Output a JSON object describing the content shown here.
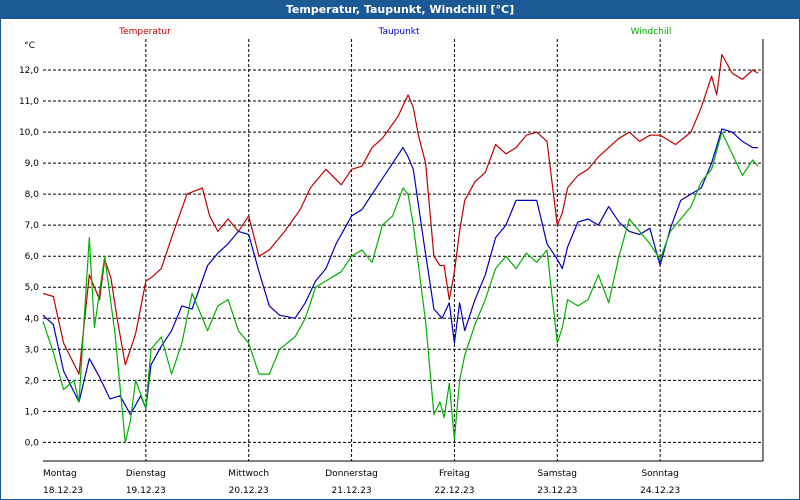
{
  "window": {
    "title": "Temperatur, Taupunkt, Windchill [°C]"
  },
  "colors": {
    "temperature": "#c00000",
    "dewpoint": "#0000c0",
    "windchill": "#00b000",
    "titlebar": "#1c5a96"
  },
  "chart_data": {
    "type": "line",
    "title": "Temperatur, Taupunkt, Windchill [°C]",
    "ylabel": "°C",
    "ylim": [
      -0.6,
      13.0
    ],
    "xlim": [
      0,
      7
    ],
    "grid": true,
    "yticks": [
      0.0,
      1.0,
      2.0,
      3.0,
      4.0,
      5.0,
      6.0,
      7.0,
      8.0,
      9.0,
      10.0,
      11.0,
      12.0
    ],
    "yticklabels": [
      "0,0",
      "1,0",
      "2,0",
      "3,0",
      "4,0",
      "5,0",
      "6,0",
      "7,0",
      "8,0",
      "9,0",
      "10,0",
      "11,0",
      "12,0"
    ],
    "xticks": [
      {
        "day": "Montag",
        "date": "18.12.23"
      },
      {
        "day": "Dienstag",
        "date": "19.12.23"
      },
      {
        "day": "Mittwoch",
        "date": "20.12.23"
      },
      {
        "day": "Donnerstag",
        "date": "21.12.23"
      },
      {
        "day": "Freitag",
        "date": "22.12.23"
      },
      {
        "day": "Samstag",
        "date": "23.12.23"
      },
      {
        "day": "Sonntag",
        "date": "24.12.23"
      }
    ],
    "series": [
      {
        "name": "Temperatur",
        "color": "#c00000",
        "x": [
          0,
          0.1,
          0.2,
          0.35,
          0.45,
          0.55,
          0.6,
          0.66,
          0.72,
          0.8,
          0.9,
          1.0,
          1.05,
          1.15,
          1.25,
          1.4,
          1.55,
          1.62,
          1.7,
          1.8,
          1.9,
          2.0,
          2.1,
          2.2,
          2.35,
          2.5,
          2.6,
          2.75,
          2.9,
          3.0,
          3.1,
          3.2,
          3.3,
          3.45,
          3.55,
          3.6,
          3.65,
          3.72,
          3.8,
          3.86,
          3.9,
          3.95,
          4.0,
          4.05,
          4.1,
          4.2,
          4.3,
          4.4,
          4.5,
          4.6,
          4.7,
          4.8,
          4.9,
          5.0,
          5.05,
          5.1,
          5.2,
          5.3,
          5.4,
          5.5,
          5.6,
          5.7,
          5.8,
          5.9,
          6.0,
          6.15,
          6.3,
          6.4,
          6.5,
          6.55,
          6.6,
          6.7,
          6.8,
          6.9,
          6.95
        ],
        "values": [
          4.8,
          4.7,
          3.2,
          2.2,
          5.4,
          4.6,
          5.9,
          5.3,
          4.0,
          2.5,
          3.5,
          5.2,
          5.3,
          5.6,
          6.6,
          8.0,
          8.2,
          7.3,
          6.8,
          7.2,
          6.8,
          7.3,
          6.0,
          6.2,
          6.8,
          7.5,
          8.2,
          8.8,
          8.3,
          8.8,
          8.9,
          9.5,
          9.8,
          10.5,
          11.2,
          10.8,
          9.9,
          9.0,
          6.0,
          5.7,
          5.7,
          4.6,
          5.5,
          6.8,
          7.8,
          8.4,
          8.7,
          9.6,
          9.3,
          9.5,
          9.9,
          10.0,
          9.7,
          7.0,
          7.4,
          8.2,
          8.6,
          8.8,
          9.2,
          9.5,
          9.8,
          10.0,
          9.7,
          9.9,
          9.9,
          9.6,
          10.0,
          10.8,
          11.8,
          11.2,
          12.5,
          11.9,
          11.7,
          12.0,
          11.9
        ]
      },
      {
        "name": "Taupunkt",
        "color": "#0000c0",
        "x": [
          0,
          0.1,
          0.2,
          0.35,
          0.45,
          0.55,
          0.65,
          0.75,
          0.85,
          0.95,
          1.0,
          1.05,
          1.15,
          1.25,
          1.35,
          1.45,
          1.6,
          1.7,
          1.8,
          1.9,
          2.0,
          2.1,
          2.2,
          2.3,
          2.45,
          2.55,
          2.65,
          2.75,
          2.85,
          3.0,
          3.1,
          3.2,
          3.3,
          3.4,
          3.5,
          3.55,
          3.6,
          3.7,
          3.8,
          3.88,
          3.95,
          4.0,
          4.05,
          4.1,
          4.2,
          4.3,
          4.4,
          4.5,
          4.6,
          4.7,
          4.8,
          4.9,
          5.0,
          5.05,
          5.1,
          5.2,
          5.3,
          5.4,
          5.5,
          5.6,
          5.7,
          5.8,
          5.9,
          6.0,
          6.1,
          6.2,
          6.3,
          6.4,
          6.5,
          6.6,
          6.7,
          6.8,
          6.9,
          6.95
        ],
        "values": [
          4.1,
          3.8,
          2.3,
          1.3,
          2.7,
          2.1,
          1.4,
          1.5,
          0.9,
          1.5,
          1.1,
          2.5,
          3.1,
          3.6,
          4.4,
          4.3,
          5.7,
          6.1,
          6.4,
          6.8,
          6.7,
          5.5,
          4.4,
          4.1,
          4.0,
          4.5,
          5.2,
          5.6,
          6.4,
          7.3,
          7.5,
          8.0,
          8.5,
          9.0,
          9.5,
          9.2,
          8.8,
          6.5,
          4.3,
          4.0,
          4.5,
          3.2,
          4.5,
          3.6,
          4.6,
          5.4,
          6.6,
          7.0,
          7.8,
          7.8,
          7.8,
          6.4,
          5.9,
          5.6,
          6.3,
          7.1,
          7.2,
          7.0,
          7.6,
          7.1,
          6.8,
          6.7,
          6.9,
          5.7,
          6.9,
          7.8,
          8.0,
          8.2,
          9.0,
          10.1,
          10.0,
          9.7,
          9.5,
          9.5
        ]
      },
      {
        "name": "Windchill",
        "color": "#00b000",
        "x": [
          0,
          0.1,
          0.2,
          0.3,
          0.35,
          0.45,
          0.5,
          0.6,
          0.7,
          0.8,
          0.85,
          0.9,
          1.0,
          1.05,
          1.15,
          1.25,
          1.35,
          1.45,
          1.6,
          1.7,
          1.8,
          1.9,
          2.0,
          2.1,
          2.2,
          2.3,
          2.45,
          2.55,
          2.65,
          2.75,
          2.9,
          3.0,
          3.1,
          3.2,
          3.3,
          3.4,
          3.5,
          3.55,
          3.6,
          3.72,
          3.8,
          3.86,
          3.9,
          3.95,
          4.0,
          4.05,
          4.1,
          4.2,
          4.3,
          4.4,
          4.5,
          4.6,
          4.7,
          4.8,
          4.9,
          5.0,
          5.05,
          5.1,
          5.2,
          5.3,
          5.4,
          5.5,
          5.6,
          5.7,
          5.8,
          5.9,
          6.0,
          6.1,
          6.2,
          6.3,
          6.4,
          6.5,
          6.6,
          6.7,
          6.8,
          6.9,
          6.95
        ],
        "values": [
          3.9,
          2.9,
          1.7,
          2.0,
          1.3,
          6.6,
          3.7,
          6.0,
          3.5,
          0.0,
          0.7,
          2.0,
          1.1,
          3.0,
          3.4,
          2.2,
          3.2,
          4.8,
          3.6,
          4.4,
          4.6,
          3.6,
          3.2,
          2.2,
          2.2,
          3.0,
          3.4,
          4.0,
          5.0,
          5.2,
          5.5,
          6.0,
          6.2,
          5.8,
          7.0,
          7.3,
          8.2,
          8.0,
          7.0,
          3.9,
          0.9,
          1.3,
          0.8,
          1.9,
          0.1,
          2.0,
          2.8,
          3.8,
          4.6,
          5.6,
          6.0,
          5.6,
          6.1,
          5.8,
          6.2,
          3.2,
          3.7,
          4.6,
          4.4,
          4.6,
          5.4,
          4.5,
          6.0,
          7.2,
          6.8,
          6.4,
          5.9,
          6.8,
          7.2,
          7.6,
          8.4,
          8.8,
          10.0,
          9.3,
          8.6,
          9.1,
          8.9
        ]
      }
    ]
  }
}
